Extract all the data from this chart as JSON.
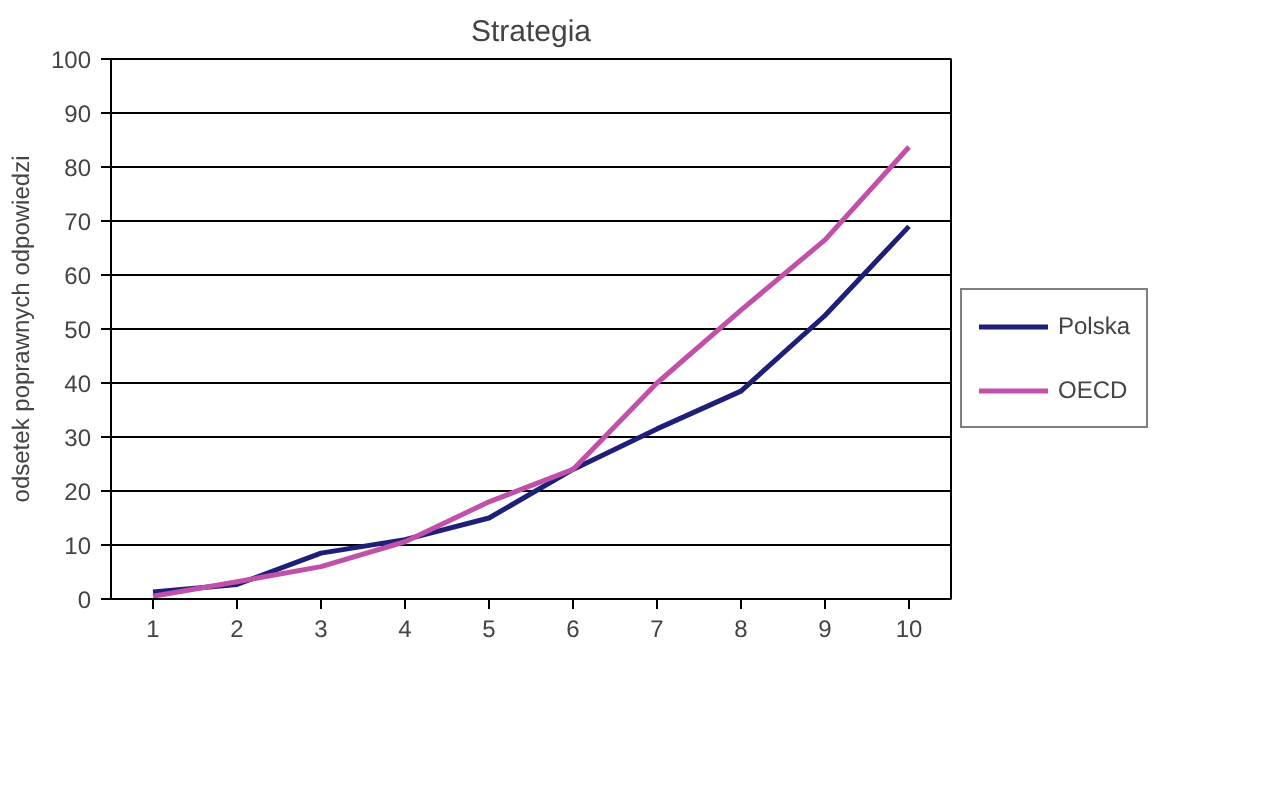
{
  "chart_data": {
    "type": "line",
    "title": "Strategia",
    "ylabel": "odsetek poprawnych odpowiedzi",
    "categories": [
      "1",
      "2",
      "3",
      "4",
      "5",
      "6",
      "7",
      "8",
      "9",
      "10"
    ],
    "series": [
      {
        "name": "Polska",
        "color": "#1f1f7a",
        "values": [
          1.3,
          2.7,
          8.5,
          11,
          15,
          24,
          31.5,
          38.5,
          52.5,
          69
        ]
      },
      {
        "name": "OECD",
        "color": "#c050a8",
        "values": [
          0.5,
          3.2,
          6,
          10.6,
          18,
          24,
          40,
          53.5,
          66.5,
          83.7
        ]
      }
    ],
    "ylim": [
      0,
      100
    ],
    "yticks": [
      0,
      10,
      20,
      30,
      40,
      50,
      60,
      70,
      80,
      90,
      100
    ],
    "grid": "y",
    "legend": "right",
    "marker": "none",
    "line_style": "solid"
  }
}
